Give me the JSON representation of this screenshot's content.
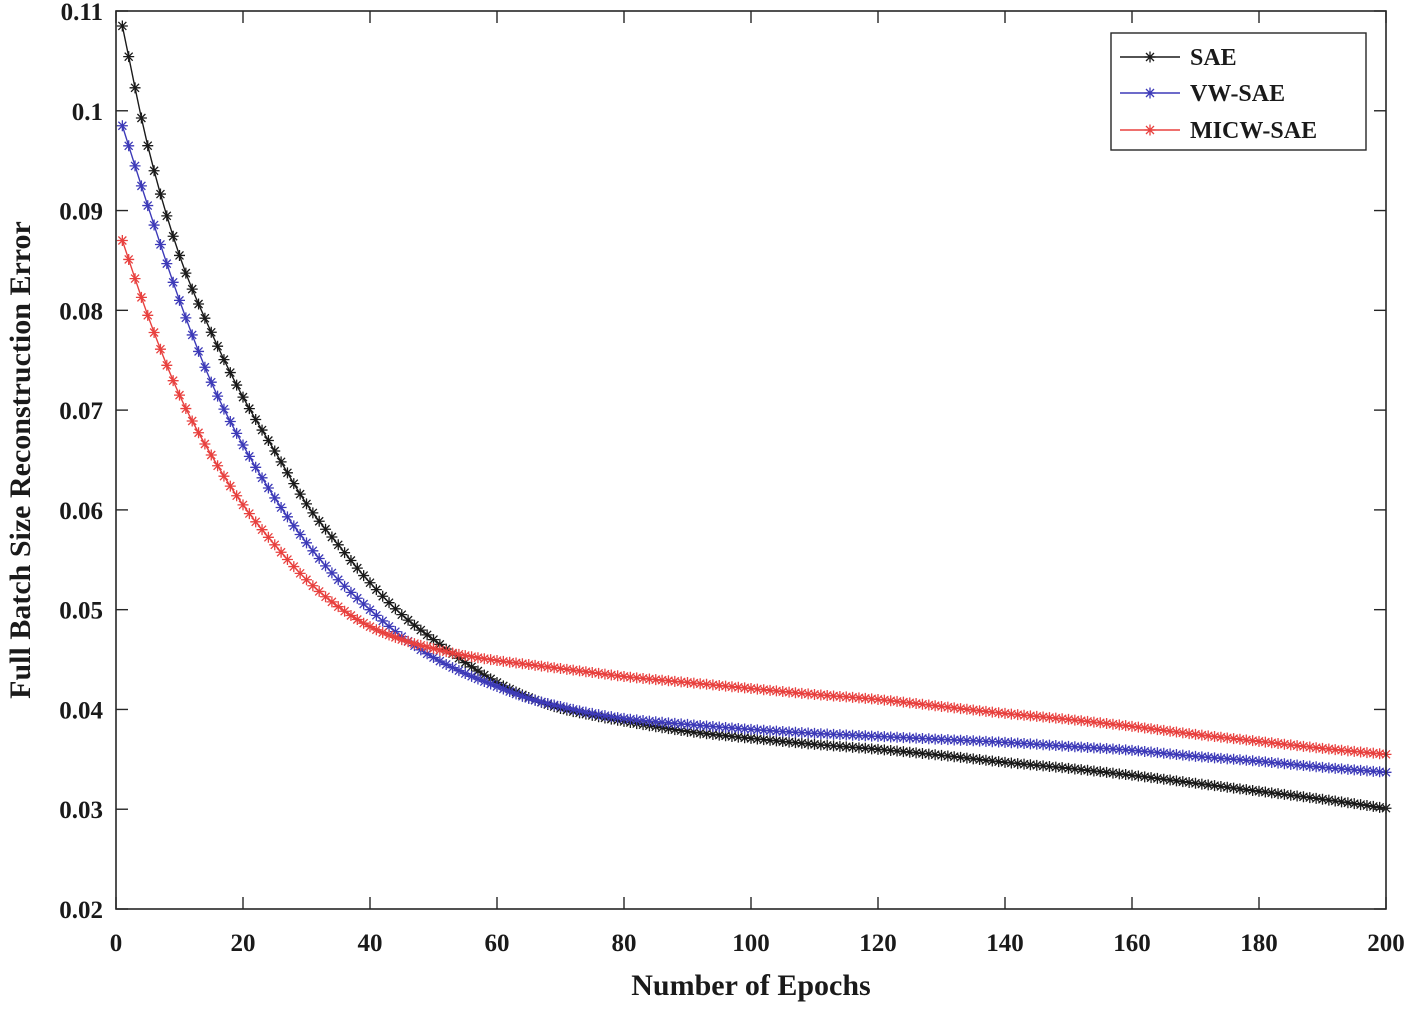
{
  "chart_data": {
    "type": "line",
    "xlabel": "Number of Epochs",
    "ylabel": "Full Batch Size Reconstruction Error",
    "xlim": [
      0,
      200
    ],
    "ylim": [
      0.02,
      0.11
    ],
    "xticks": [
      0,
      20,
      40,
      60,
      80,
      100,
      120,
      140,
      160,
      180,
      200
    ],
    "xtick_labels": [
      "0",
      "20",
      "40",
      "60",
      "80",
      "100",
      "120",
      "140",
      "160",
      "180",
      "200"
    ],
    "yticks": [
      0.02,
      0.03,
      0.04,
      0.05,
      0.06,
      0.07,
      0.08,
      0.09,
      0.1,
      0.11
    ],
    "ytick_labels": [
      "0.02",
      "0.03",
      "0.04",
      "0.05",
      "0.06",
      "0.07",
      "0.08",
      "0.09",
      "0.1",
      "0.11"
    ],
    "grid": false,
    "legend_position": "top-right",
    "marker": "asterisk",
    "series": [
      {
        "name": "SAE",
        "color": "#1a1a1a",
        "x": [
          1,
          5,
          10,
          15,
          20,
          25,
          30,
          35,
          40,
          45,
          50,
          55,
          60,
          65,
          70,
          75,
          80,
          90,
          100,
          110,
          120,
          130,
          140,
          150,
          160,
          170,
          180,
          190,
          200
        ],
        "y": [
          0.1085,
          0.0965,
          0.0855,
          0.0778,
          0.0713,
          0.0659,
          0.0606,
          0.0565,
          0.0527,
          0.0495,
          0.047,
          0.0447,
          0.0427,
          0.0412,
          0.0401,
          0.0394,
          0.0388,
          0.0378,
          0.0371,
          0.0365,
          0.036,
          0.0354,
          0.0347,
          0.0341,
          0.0334,
          0.0326,
          0.0318,
          0.031,
          0.0301
        ]
      },
      {
        "name": "VW-SAE",
        "color": "#3d3ab8",
        "x": [
          1,
          5,
          10,
          15,
          20,
          25,
          30,
          35,
          40,
          45,
          50,
          55,
          60,
          65,
          70,
          75,
          80,
          90,
          100,
          110,
          120,
          130,
          140,
          150,
          160,
          170,
          180,
          190,
          200
        ],
        "y": [
          0.0985,
          0.0905,
          0.081,
          0.0728,
          0.0665,
          0.0612,
          0.0567,
          0.053,
          0.05,
          0.0473,
          0.0452,
          0.0436,
          0.0423,
          0.0411,
          0.0403,
          0.0396,
          0.0391,
          0.0385,
          0.038,
          0.0376,
          0.0373,
          0.037,
          0.0367,
          0.0363,
          0.0359,
          0.0353,
          0.0348,
          0.0342,
          0.0337
        ]
      },
      {
        "name": "MICW-SAE",
        "color": "#e8413f",
        "x": [
          1,
          5,
          10,
          15,
          20,
          25,
          30,
          35,
          40,
          45,
          50,
          55,
          60,
          65,
          70,
          75,
          80,
          90,
          100,
          110,
          120,
          130,
          140,
          150,
          160,
          170,
          180,
          190,
          200
        ],
        "y": [
          0.087,
          0.0795,
          0.0715,
          0.0655,
          0.0605,
          0.0565,
          0.053,
          0.0503,
          0.0483,
          0.047,
          0.0461,
          0.0454,
          0.0449,
          0.0445,
          0.0441,
          0.0437,
          0.0433,
          0.0427,
          0.0421,
          0.0415,
          0.041,
          0.0403,
          0.0396,
          0.039,
          0.0383,
          0.0375,
          0.0368,
          0.0361,
          0.0355
        ]
      }
    ]
  }
}
